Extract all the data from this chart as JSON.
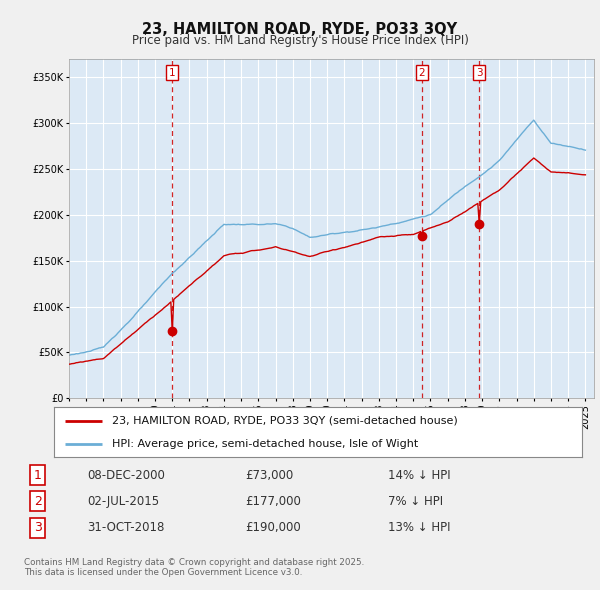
{
  "title": "23, HAMILTON ROAD, RYDE, PO33 3QY",
  "subtitle": "Price paid vs. HM Land Registry's House Price Index (HPI)",
  "ylim": [
    0,
    370000
  ],
  "yticks": [
    0,
    50000,
    100000,
    150000,
    200000,
    250000,
    300000,
    350000
  ],
  "legend_line1": "23, HAMILTON ROAD, RYDE, PO33 3QY (semi-detached house)",
  "legend_line2": "HPI: Average price, semi-detached house, Isle of Wight",
  "sale1_date": "08-DEC-2000",
  "sale1_price": "£73,000",
  "sale1_hpi": "14% ↓ HPI",
  "sale2_date": "02-JUL-2015",
  "sale2_price": "£177,000",
  "sale2_hpi": "7% ↓ HPI",
  "sale3_date": "31-OCT-2018",
  "sale3_price": "£190,000",
  "sale3_hpi": "13% ↓ HPI",
  "footnote": "Contains HM Land Registry data © Crown copyright and database right 2025.\nThis data is licensed under the Open Government Licence v3.0.",
  "hpi_color": "#6baed6",
  "price_color": "#cc0000",
  "vline_color": "#cc0000",
  "background_color": "#f0f0f0",
  "plot_bg_color": "#dce9f5",
  "sale1_x": 2001.0,
  "sale2_x": 2015.5,
  "sale3_x": 2018.83
}
